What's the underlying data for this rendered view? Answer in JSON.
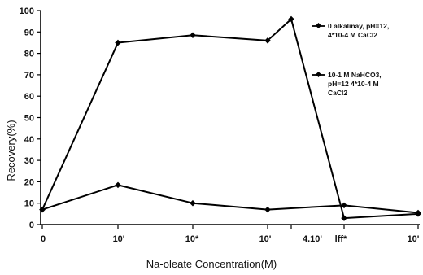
{
  "chart_data": {
    "type": "line",
    "title": "",
    "xlabel": "Na-oleate Concentration(M)",
    "ylabel": "Recovery(%)",
    "ylim": [
      0,
      100
    ],
    "yticks": [
      0,
      10,
      20,
      30,
      40,
      50,
      60,
      70,
      80,
      90,
      100
    ],
    "categories": [
      "0",
      "10'",
      "10*",
      "10'",
      "4.10'",
      "lff*",
      "10'"
    ],
    "grid": false,
    "legend_position": "right",
    "series": [
      {
        "name": "0 alkalinay, pH=12, 4*10-4 M CaCl2",
        "values": [
          7,
          85,
          88.5,
          86,
          96,
          3,
          5
        ],
        "marker": "diamond",
        "color": "#000000"
      },
      {
        "name": "10-1 M NaHCO3, pH=12 4*10-4 M CaCl2",
        "values": [
          7,
          18.5,
          10,
          7,
          null,
          9,
          5.5
        ],
        "marker": "diamond",
        "color": "#000000"
      }
    ]
  }
}
